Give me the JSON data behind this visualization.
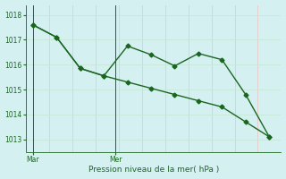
{
  "line1_x": [
    0,
    1,
    2,
    3,
    4,
    5,
    6,
    7,
    8,
    9,
    10
  ],
  "line1_y": [
    1017.6,
    1017.1,
    1015.85,
    1015.55,
    1016.75,
    1016.4,
    1015.95,
    1016.45,
    1016.2,
    1014.8,
    1013.1
  ],
  "line2_x": [
    0,
    1,
    2,
    3,
    4,
    5,
    6,
    7,
    8,
    9,
    10
  ],
  "line2_y": [
    1017.6,
    1017.1,
    1015.85,
    1015.55,
    1015.3,
    1015.05,
    1014.8,
    1014.55,
    1014.3,
    1013.7,
    1013.1
  ],
  "line_color": "#1a6620",
  "bg_color": "#d4f0f0",
  "grid_color_h": "#c8e8d8",
  "grid_color_v": "#e8c8c8",
  "tick_color": "#1a6620",
  "xlabel": "Pression niveau de la mer( hPa )",
  "yticks": [
    1013,
    1014,
    1015,
    1016,
    1017,
    1018
  ],
  "ylim": [
    1012.5,
    1018.4
  ],
  "xlim": [
    -0.3,
    10.5
  ],
  "xtick_labels": [
    "Mar",
    "Mer"
  ],
  "xtick_positions": [
    0.0,
    3.5
  ],
  "vline_x": [
    0.0,
    3.5
  ],
  "marker": "D",
  "markersize": 2.5,
  "linewidth": 1.0,
  "figsize": [
    3.2,
    2.0
  ],
  "dpi": 100
}
